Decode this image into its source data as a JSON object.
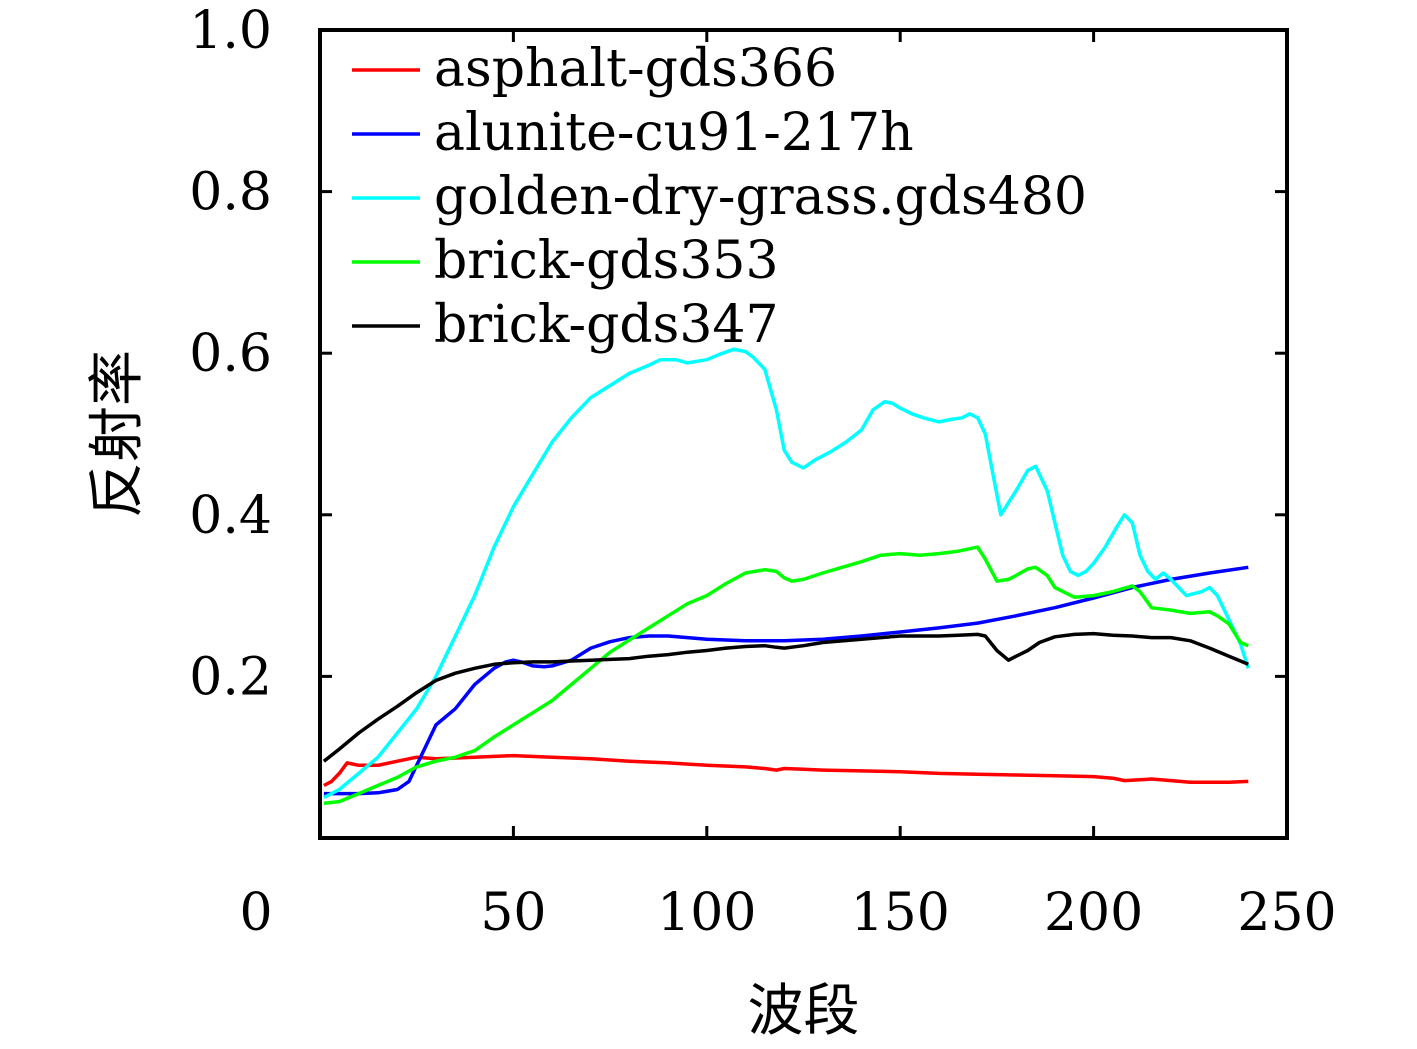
{
  "chart_data": {
    "type": "line",
    "title": "",
    "xlabel": "波段",
    "ylabel": "反射率",
    "xlim": [
      0,
      250
    ],
    "ylim": [
      0,
      1.0
    ],
    "x_ticks": [
      {
        "value": 0,
        "label": "0"
      },
      {
        "value": 50,
        "label": "50"
      },
      {
        "value": 100,
        "label": "100"
      },
      {
        "value": 150,
        "label": "150"
      },
      {
        "value": 200,
        "label": "200"
      },
      {
        "value": 250,
        "label": "250"
      }
    ],
    "y_ticks": [
      {
        "value": 0.2,
        "label": "0.2"
      },
      {
        "value": 0.4,
        "label": "0.4"
      },
      {
        "value": 0.6,
        "label": "0.6"
      },
      {
        "value": 0.8,
        "label": "0.8"
      },
      {
        "value": 1.0,
        "label": "1.0"
      }
    ],
    "grid": false,
    "legend_position": "top-left",
    "series": [
      {
        "name": "asphalt-gds366",
        "color": "#ff0000",
        "x": [
          1,
          3,
          5,
          7,
          10,
          15,
          20,
          25,
          30,
          40,
          50,
          60,
          70,
          80,
          90,
          100,
          110,
          115,
          118,
          120,
          125,
          130,
          140,
          150,
          160,
          170,
          180,
          190,
          200,
          205,
          208,
          212,
          215,
          220,
          225,
          230,
          235,
          240
        ],
        "y": [
          0.065,
          0.07,
          0.08,
          0.093,
          0.09,
          0.09,
          0.095,
          0.1,
          0.098,
          0.1,
          0.102,
          0.1,
          0.098,
          0.095,
          0.093,
          0.09,
          0.088,
          0.086,
          0.084,
          0.086,
          0.085,
          0.084,
          0.083,
          0.082,
          0.08,
          0.079,
          0.078,
          0.077,
          0.076,
          0.074,
          0.071,
          0.072,
          0.073,
          0.071,
          0.069,
          0.069,
          0.069,
          0.07
        ]
      },
      {
        "name": "alunite-cu91-217h",
        "color": "#0000ff",
        "x": [
          1,
          5,
          10,
          15,
          20,
          23,
          25,
          28,
          30,
          35,
          40,
          45,
          48,
          50,
          52,
          55,
          58,
          60,
          65,
          70,
          75,
          80,
          85,
          90,
          95,
          100,
          110,
          120,
          130,
          140,
          150,
          160,
          170,
          180,
          190,
          200,
          210,
          220,
          230,
          240
        ],
        "y": [
          0.055,
          0.055,
          0.055,
          0.056,
          0.06,
          0.07,
          0.09,
          0.12,
          0.14,
          0.16,
          0.19,
          0.21,
          0.218,
          0.22,
          0.218,
          0.213,
          0.212,
          0.213,
          0.22,
          0.235,
          0.243,
          0.248,
          0.25,
          0.25,
          0.248,
          0.246,
          0.244,
          0.244,
          0.246,
          0.25,
          0.255,
          0.26,
          0.266,
          0.275,
          0.285,
          0.297,
          0.31,
          0.32,
          0.328,
          0.335
        ]
      },
      {
        "name": "golden-dry-grass.gds480",
        "color": "#00ffff",
        "x": [
          1,
          5,
          10,
          15,
          20,
          25,
          30,
          35,
          40,
          45,
          50,
          55,
          60,
          65,
          70,
          75,
          80,
          85,
          88,
          92,
          95,
          100,
          103,
          107,
          110,
          112,
          115,
          118,
          120,
          122,
          125,
          128,
          132,
          136,
          140,
          143,
          146,
          148,
          150,
          153,
          156,
          160,
          163,
          166,
          168,
          170,
          172,
          174,
          176,
          178,
          180,
          183,
          185,
          188,
          190,
          192,
          194,
          196,
          198,
          200,
          203,
          206,
          208,
          210,
          212,
          214,
          216,
          218,
          220,
          224,
          228,
          230,
          232,
          235,
          238,
          240
        ],
        "y": [
          0.05,
          0.06,
          0.08,
          0.1,
          0.13,
          0.16,
          0.2,
          0.25,
          0.3,
          0.36,
          0.41,
          0.45,
          0.49,
          0.52,
          0.545,
          0.56,
          0.575,
          0.585,
          0.592,
          0.592,
          0.588,
          0.592,
          0.598,
          0.605,
          0.602,
          0.595,
          0.58,
          0.53,
          0.48,
          0.465,
          0.458,
          0.468,
          0.478,
          0.49,
          0.505,
          0.53,
          0.54,
          0.538,
          0.532,
          0.525,
          0.52,
          0.515,
          0.518,
          0.52,
          0.525,
          0.52,
          0.5,
          0.45,
          0.4,
          0.415,
          0.43,
          0.455,
          0.46,
          0.43,
          0.39,
          0.35,
          0.33,
          0.325,
          0.33,
          0.34,
          0.36,
          0.385,
          0.4,
          0.39,
          0.35,
          0.33,
          0.32,
          0.328,
          0.32,
          0.3,
          0.305,
          0.31,
          0.3,
          0.27,
          0.24,
          0.21
        ]
      },
      {
        "name": "brick-gds353",
        "color": "#00ff00",
        "x": [
          1,
          5,
          10,
          15,
          20,
          25,
          30,
          35,
          38,
          40,
          45,
          50,
          55,
          60,
          65,
          70,
          75,
          80,
          85,
          90,
          95,
          100,
          105,
          110,
          115,
          118,
          120,
          122,
          125,
          130,
          135,
          140,
          145,
          150,
          155,
          160,
          165,
          170,
          172,
          175,
          178,
          180,
          183,
          185,
          188,
          190,
          195,
          200,
          205,
          210,
          212,
          215,
          220,
          225,
          230,
          232,
          235,
          238,
          240
        ],
        "y": [
          0.043,
          0.045,
          0.055,
          0.065,
          0.075,
          0.088,
          0.095,
          0.1,
          0.105,
          0.108,
          0.125,
          0.14,
          0.155,
          0.17,
          0.19,
          0.21,
          0.23,
          0.245,
          0.26,
          0.275,
          0.29,
          0.3,
          0.315,
          0.328,
          0.332,
          0.33,
          0.322,
          0.318,
          0.32,
          0.328,
          0.335,
          0.342,
          0.35,
          0.352,
          0.35,
          0.352,
          0.355,
          0.36,
          0.345,
          0.318,
          0.32,
          0.325,
          0.333,
          0.335,
          0.325,
          0.31,
          0.298,
          0.3,
          0.305,
          0.312,
          0.305,
          0.285,
          0.282,
          0.278,
          0.28,
          0.275,
          0.265,
          0.242,
          0.238
        ]
      },
      {
        "name": "brick-gds347",
        "color": "#000000",
        "x": [
          1,
          5,
          10,
          15,
          20,
          25,
          30,
          35,
          40,
          45,
          50,
          55,
          60,
          65,
          70,
          75,
          80,
          85,
          90,
          95,
          100,
          105,
          110,
          115,
          118,
          120,
          125,
          130,
          140,
          150,
          160,
          165,
          170,
          172,
          175,
          178,
          180,
          183,
          186,
          190,
          195,
          200,
          205,
          210,
          215,
          220,
          225,
          230,
          235,
          240
        ],
        "y": [
          0.095,
          0.11,
          0.13,
          0.147,
          0.163,
          0.18,
          0.195,
          0.204,
          0.21,
          0.215,
          0.217,
          0.218,
          0.218,
          0.219,
          0.22,
          0.221,
          0.222,
          0.225,
          0.227,
          0.23,
          0.232,
          0.235,
          0.237,
          0.238,
          0.236,
          0.235,
          0.238,
          0.242,
          0.246,
          0.25,
          0.25,
          0.251,
          0.252,
          0.25,
          0.232,
          0.22,
          0.225,
          0.232,
          0.242,
          0.249,
          0.252,
          0.253,
          0.251,
          0.25,
          0.248,
          0.248,
          0.244,
          0.235,
          0.225,
          0.215
        ]
      }
    ]
  }
}
